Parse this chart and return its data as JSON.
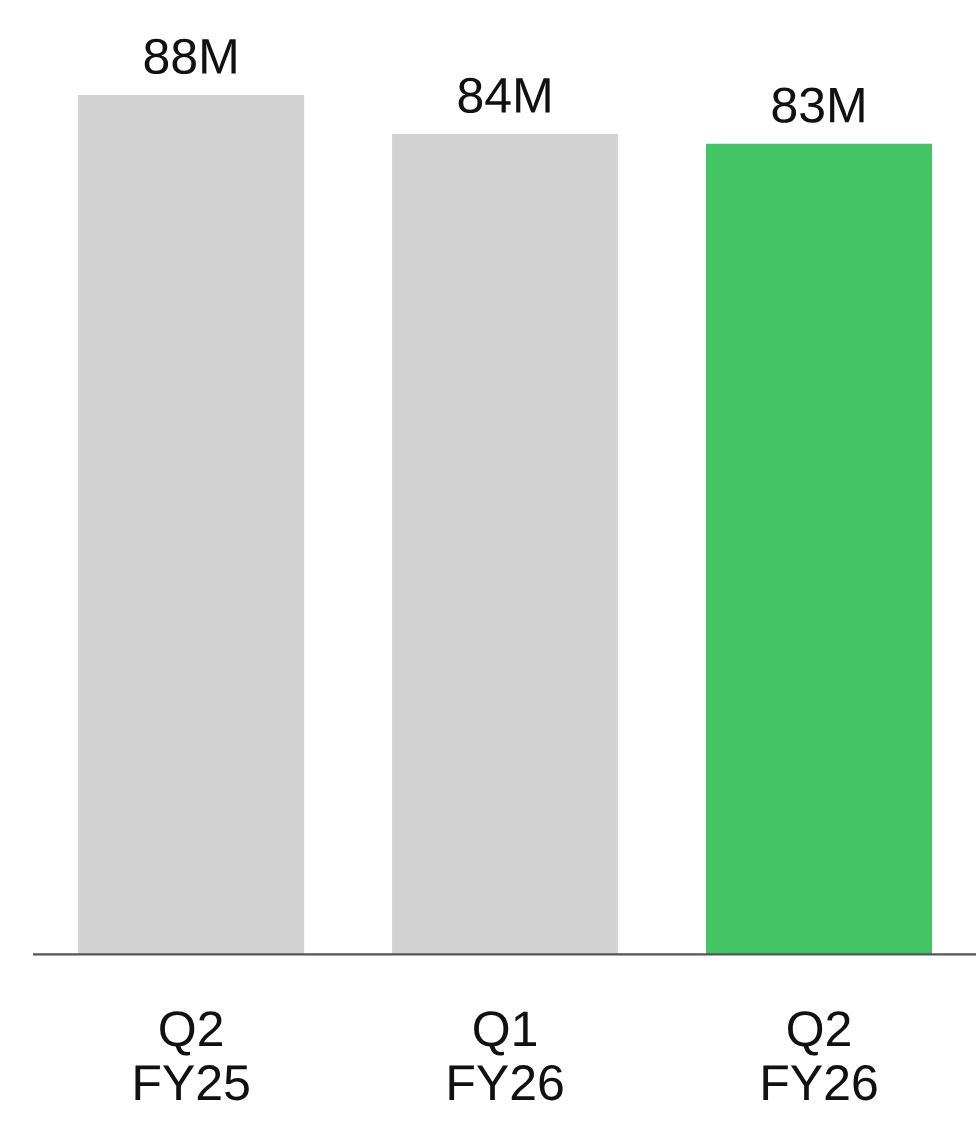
{
  "chart_data": {
    "type": "bar",
    "categories": [
      "Q2\nFY25",
      "Q1\nFY26",
      "Q2\nFY26"
    ],
    "values": [
      88,
      84,
      83
    ],
    "colors": [
      "#d3d3d3",
      "#d3d3d3",
      "#43c465"
    ],
    "value_labels": [
      "88M",
      "84M",
      "83M"
    ],
    "grid": false,
    "legend": false
  }
}
